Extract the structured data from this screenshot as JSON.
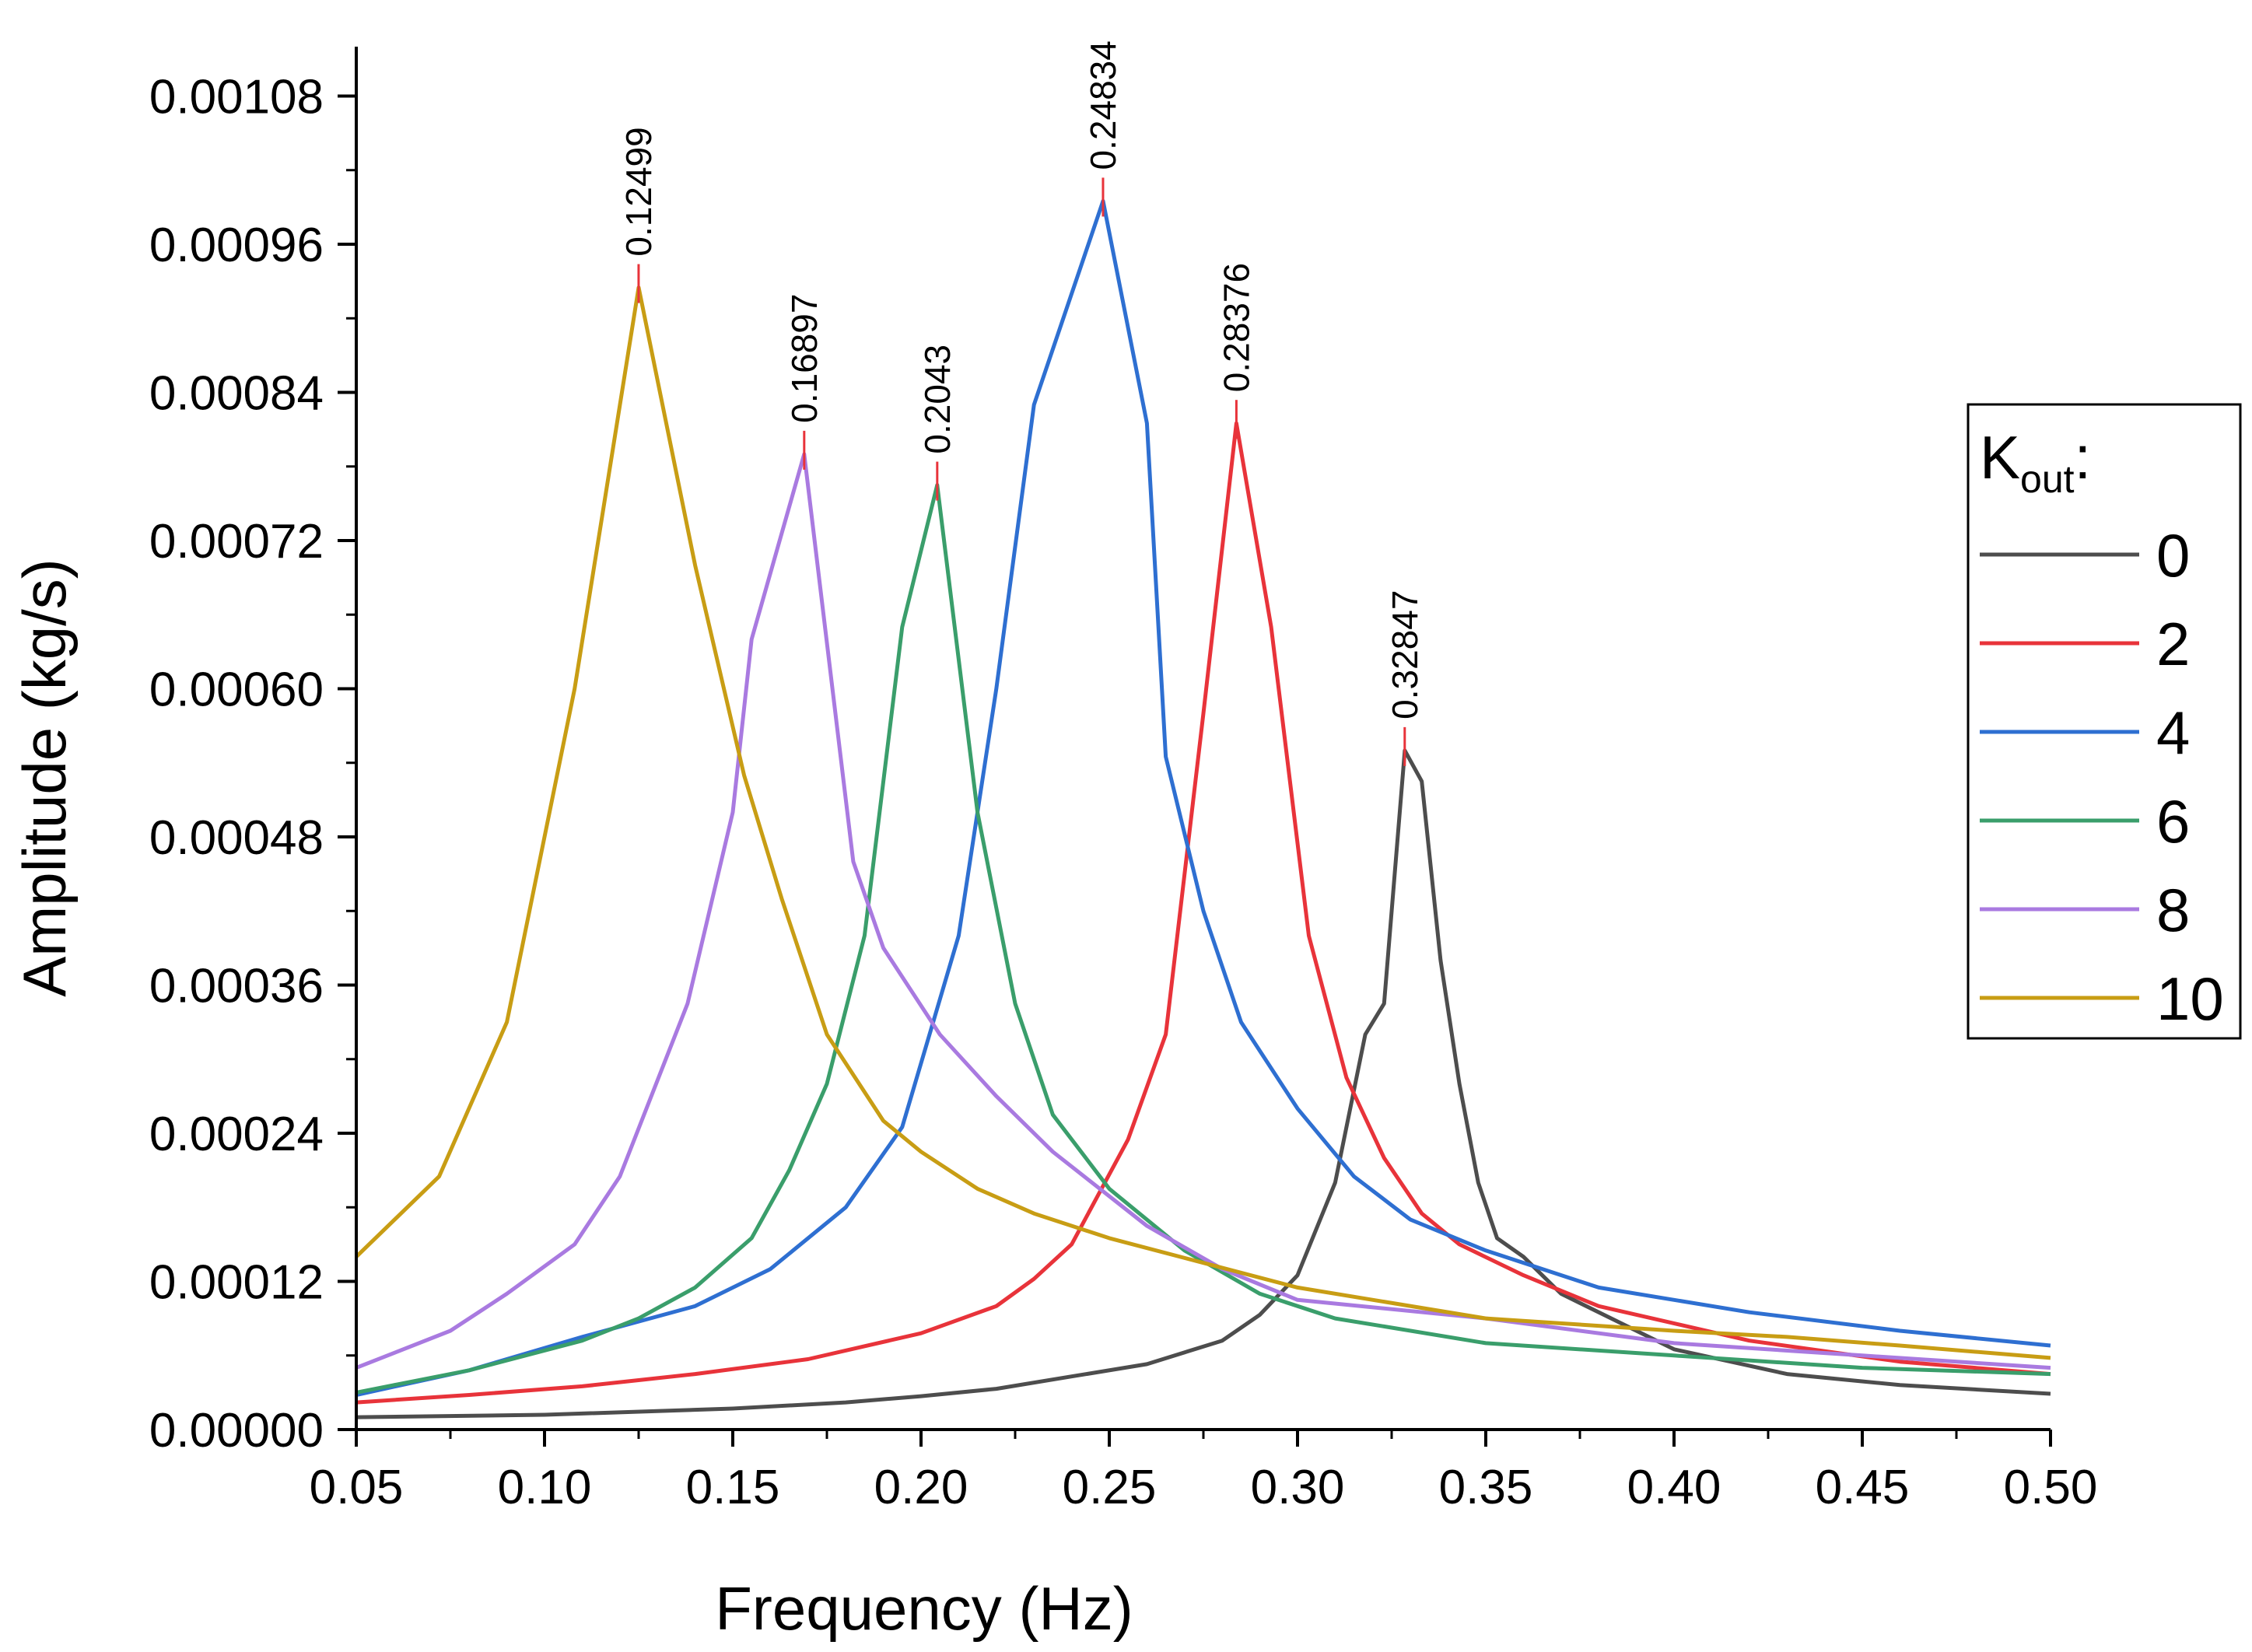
{
  "chart_data": {
    "type": "line",
    "xlabel": "Frequency (Hz)",
    "ylabel": "Amplitude (kg/s)",
    "xlim": [
      0.05,
      0.5
    ],
    "ylim": [
      0,
      0.00112
    ],
    "x_ticks": [
      "0.05",
      "0.10",
      "0.15",
      "0.20",
      "0.25",
      "0.30",
      "0.35",
      "0.40",
      "0.45",
      "0.50"
    ],
    "y_ticks": [
      "0.00000",
      "0.00012",
      "0.00024",
      "0.00036",
      "0.00048",
      "0.00060",
      "0.00072",
      "0.00084",
      "0.00096",
      "0.00108"
    ],
    "legend": {
      "title_main": "K",
      "title_sub": "out",
      "title_suffix": ":",
      "placement": "right"
    },
    "series": [
      {
        "name": "0",
        "color": "#4d4d4d",
        "points": [
          [
            0.05,
            1e-05
          ],
          [
            0.1,
            1.2e-05
          ],
          [
            0.15,
            1.7e-05
          ],
          [
            0.18,
            2.2e-05
          ],
          [
            0.2,
            2.7e-05
          ],
          [
            0.22,
            3.3e-05
          ],
          [
            0.24,
            4.3e-05
          ],
          [
            0.26,
            5.3e-05
          ],
          [
            0.28,
            7.2e-05
          ],
          [
            0.29,
            9.3e-05
          ],
          [
            0.3,
            0.000125
          ],
          [
            0.31,
            0.0002
          ],
          [
            0.318,
            0.00032
          ],
          [
            0.323,
            0.000345
          ],
          [
            0.3285,
            0.00055
          ],
          [
            0.333,
            0.000525
          ],
          [
            0.338,
            0.00038
          ],
          [
            0.343,
            0.00028
          ],
          [
            0.348,
            0.0002
          ],
          [
            0.353,
            0.000155
          ],
          [
            0.36,
            0.00014
          ],
          [
            0.37,
            0.00011
          ],
          [
            0.4,
            6.5e-05
          ],
          [
            0.43,
            4.5e-05
          ],
          [
            0.46,
            3.6e-05
          ],
          [
            0.5,
            2.9e-05
          ]
        ]
      },
      {
        "name": "2",
        "color": "#e8333a",
        "points": [
          [
            0.05,
            2.2e-05
          ],
          [
            0.08,
            2.8e-05
          ],
          [
            0.11,
            3.5e-05
          ],
          [
            0.14,
            4.5e-05
          ],
          [
            0.17,
            5.7e-05
          ],
          [
            0.2,
            7.8e-05
          ],
          [
            0.22,
            0.0001
          ],
          [
            0.23,
            0.000122
          ],
          [
            0.24,
            0.00015
          ],
          [
            0.255,
            0.000235
          ],
          [
            0.265,
            0.00032
          ],
          [
            0.275,
            0.00058
          ],
          [
            0.28376,
            0.000815
          ],
          [
            0.293,
            0.00065
          ],
          [
            0.303,
            0.0004
          ],
          [
            0.313,
            0.000285
          ],
          [
            0.323,
            0.00022
          ],
          [
            0.333,
            0.000175
          ],
          [
            0.343,
            0.00015
          ],
          [
            0.36,
            0.000125
          ],
          [
            0.38,
            0.0001
          ],
          [
            0.42,
            7.2e-05
          ],
          [
            0.46,
            5.5e-05
          ],
          [
            0.5,
            4.5e-05
          ]
        ]
      },
      {
        "name": "4",
        "color": "#2e6fd1",
        "points": [
          [
            0.05,
            2.8e-05
          ],
          [
            0.08,
            4.8e-05
          ],
          [
            0.11,
            7.5e-05
          ],
          [
            0.14,
            0.0001
          ],
          [
            0.16,
            0.00013
          ],
          [
            0.18,
            0.00018
          ],
          [
            0.195,
            0.000245
          ],
          [
            0.21,
            0.0004
          ],
          [
            0.22,
            0.0006
          ],
          [
            0.23,
            0.00083
          ],
          [
            0.24834,
            0.000995
          ],
          [
            0.26,
            0.000815
          ],
          [
            0.265,
            0.000545
          ],
          [
            0.275,
            0.00042
          ],
          [
            0.285,
            0.00033
          ],
          [
            0.3,
            0.00026
          ],
          [
            0.315,
            0.000205
          ],
          [
            0.33,
            0.00017
          ],
          [
            0.35,
            0.000145
          ],
          [
            0.38,
            0.000115
          ],
          [
            0.42,
            9.5e-05
          ],
          [
            0.46,
            8e-05
          ],
          [
            0.5,
            6.8e-05
          ]
        ]
      },
      {
        "name": "6",
        "color": "#3a9e6b",
        "points": [
          [
            0.05,
            3e-05
          ],
          [
            0.08,
            4.8e-05
          ],
          [
            0.11,
            7.2e-05
          ],
          [
            0.125,
            9e-05
          ],
          [
            0.14,
            0.000115
          ],
          [
            0.155,
            0.000155
          ],
          [
            0.165,
            0.00021
          ],
          [
            0.175,
            0.00028
          ],
          [
            0.185,
            0.0004
          ],
          [
            0.195,
            0.00065
          ],
          [
            0.2043,
            0.000765
          ],
          [
            0.215,
            0.0005
          ],
          [
            0.225,
            0.000345
          ],
          [
            0.235,
            0.000255
          ],
          [
            0.25,
            0.000195
          ],
          [
            0.27,
            0.000145
          ],
          [
            0.29,
            0.00011
          ],
          [
            0.31,
            9e-05
          ],
          [
            0.35,
            7e-05
          ],
          [
            0.4,
            6e-05
          ],
          [
            0.45,
            5e-05
          ],
          [
            0.5,
            4.5e-05
          ]
        ]
      },
      {
        "name": "8",
        "color": "#a97ae0",
        "points": [
          [
            0.05,
            5e-05
          ],
          [
            0.075,
            8e-05
          ],
          [
            0.09,
            0.00011
          ],
          [
            0.108,
            0.00015
          ],
          [
            0.12,
            0.000205
          ],
          [
            0.138,
            0.000345
          ],
          [
            0.15,
            0.0005
          ],
          [
            0.155,
            0.00064
          ],
          [
            0.16897,
            0.00079
          ],
          [
            0.182,
            0.00046
          ],
          [
            0.19,
            0.00039
          ],
          [
            0.205,
            0.00032
          ],
          [
            0.22,
            0.00027
          ],
          [
            0.235,
            0.000225
          ],
          [
            0.26,
            0.000165
          ],
          [
            0.28,
            0.00013
          ],
          [
            0.3,
            0.000105
          ],
          [
            0.35,
            9e-05
          ],
          [
            0.4,
            7e-05
          ],
          [
            0.45,
            6e-05
          ],
          [
            0.5,
            5e-05
          ]
        ]
      },
      {
        "name": "10",
        "color": "#c89d14",
        "points": [
          [
            0.05,
            0.00014
          ],
          [
            0.072,
            0.000205
          ],
          [
            0.09,
            0.00033
          ],
          [
            0.108,
            0.0006
          ],
          [
            0.12499,
            0.000925
          ],
          [
            0.14,
            0.0007
          ],
          [
            0.153,
            0.00053
          ],
          [
            0.163,
            0.00043
          ],
          [
            0.175,
            0.00032
          ],
          [
            0.19,
            0.00025
          ],
          [
            0.2,
            0.000225
          ],
          [
            0.215,
            0.000195
          ],
          [
            0.23,
            0.000175
          ],
          [
            0.25,
            0.000155
          ],
          [
            0.275,
            0.000135
          ],
          [
            0.3,
            0.000115
          ],
          [
            0.35,
            9e-05
          ],
          [
            0.4,
            8e-05
          ],
          [
            0.43,
            7.5e-05
          ],
          [
            0.46,
            6.8e-05
          ],
          [
            0.5,
            5.8e-05
          ]
        ]
      }
    ],
    "peak_labels": [
      {
        "text": "0.12499",
        "x": 0.12499,
        "y": 0.000925
      },
      {
        "text": "0.16897",
        "x": 0.16897,
        "y": 0.00079
      },
      {
        "text": "0.2043",
        "x": 0.2043,
        "y": 0.000765
      },
      {
        "text": "0.24834",
        "x": 0.24834,
        "y": 0.000995
      },
      {
        "text": "0.28376",
        "x": 0.28376,
        "y": 0.000815
      },
      {
        "text": "0.32847",
        "x": 0.32847,
        "y": 0.00055
      }
    ]
  }
}
